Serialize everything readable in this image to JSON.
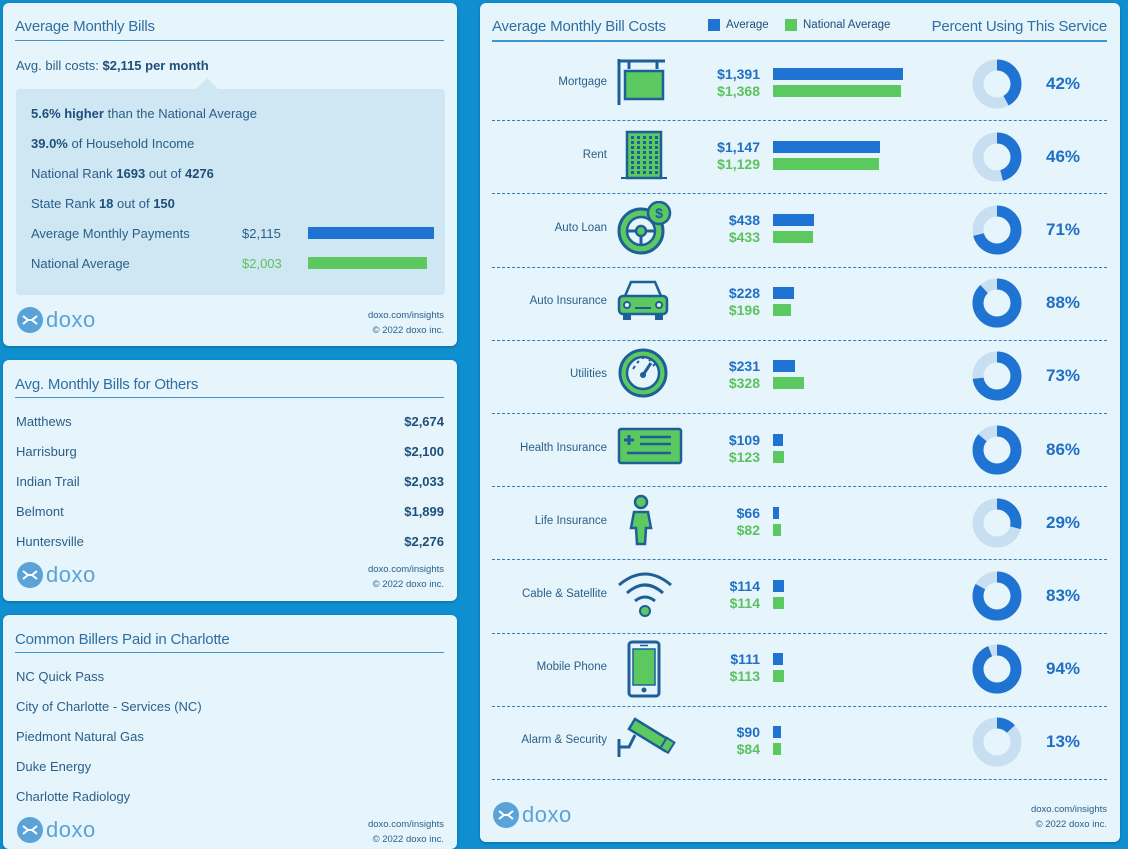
{
  "colors": {
    "average": "#1f73d2",
    "national": "#5cc860",
    "ring_bg": "#c7dff1",
    "icon_blue": "#1e5f9a",
    "icon_green": "#5cc860"
  },
  "summary": {
    "title": "Average Monthly Bills",
    "avg_label": "Avg. bill costs:",
    "avg_value": "$2,115 per month",
    "higher_bold": "5.6% higher",
    "higher_rest": "than the National Average",
    "income_bold": "39.0%",
    "income_rest": "of Household Income",
    "national_rank_pre": "National Rank",
    "national_rank": "1693",
    "national_rank_mid": "out of",
    "national_rank_total": "4276",
    "state_rank_pre": "State Rank",
    "state_rank": "18",
    "state_rank_mid": "out of",
    "state_rank_total": "150",
    "payments_label": "Average Monthly Payments",
    "payments_value": "$2,115",
    "payments_amount": 2115,
    "national_label": "National Average",
    "national_value": "$2,003",
    "national_amount": 2003
  },
  "others": {
    "title": "Avg. Monthly Bills for Others",
    "rows": [
      {
        "city": "Matthews",
        "value": "$2,674"
      },
      {
        "city": "Harrisburg",
        "value": "$2,100"
      },
      {
        "city": "Indian Trail",
        "value": "$2,033"
      },
      {
        "city": "Belmont",
        "value": "$1,899"
      },
      {
        "city": "Huntersville",
        "value": "$2,276"
      }
    ]
  },
  "billers": {
    "title": "Common Billers Paid in Charlotte",
    "rows": [
      "NC Quick Pass",
      "City of Charlotte - Services (NC)",
      "Piedmont Natural Gas",
      "Duke Energy",
      "Charlotte Radiology"
    ]
  },
  "footer": {
    "logo": "doxo",
    "url": "doxo.com/insights",
    "copyright": "© 2022 doxo inc."
  },
  "chart_data": {
    "type": "bar",
    "title": "Average Monthly Bill Costs",
    "right_title": "Percent Using This Service",
    "legend": [
      "Average",
      "National Average"
    ],
    "categories": [
      "Mortgage",
      "Rent",
      "Auto Loan",
      "Auto Insurance",
      "Utilities",
      "Health Insurance",
      "Life Insurance",
      "Cable & Satellite",
      "Mobile Phone",
      "Alarm & Security"
    ],
    "icons": [
      "sign-icon",
      "building-icon",
      "steering-wheel-icon",
      "car-icon",
      "gauge-icon",
      "insurance-card-icon",
      "person-icon",
      "wifi-icon",
      "mobile-phone-icon",
      "security-camera-icon"
    ],
    "series": [
      {
        "name": "Average",
        "values": [
          1391,
          1147,
          438,
          228,
          231,
          109,
          66,
          114,
          111,
          90
        ],
        "labels": [
          "$1,391",
          "$1,147",
          "$438",
          "$228",
          "$231",
          "$109",
          "$66",
          "$114",
          "$111",
          "$90"
        ]
      },
      {
        "name": "National Average",
        "values": [
          1368,
          1129,
          433,
          196,
          328,
          123,
          82,
          114,
          113,
          84
        ],
        "labels": [
          "$1,368",
          "$1,129",
          "$433",
          "$196",
          "$328",
          "$123",
          "$82",
          "$114",
          "$113",
          "$84"
        ]
      }
    ],
    "percent_using": [
      42,
      46,
      71,
      88,
      73,
      86,
      29,
      83,
      94,
      13
    ],
    "percent_labels": [
      "42%",
      "46%",
      "71%",
      "88%",
      "73%",
      "86%",
      "29%",
      "83%",
      "94%",
      "13%"
    ]
  }
}
